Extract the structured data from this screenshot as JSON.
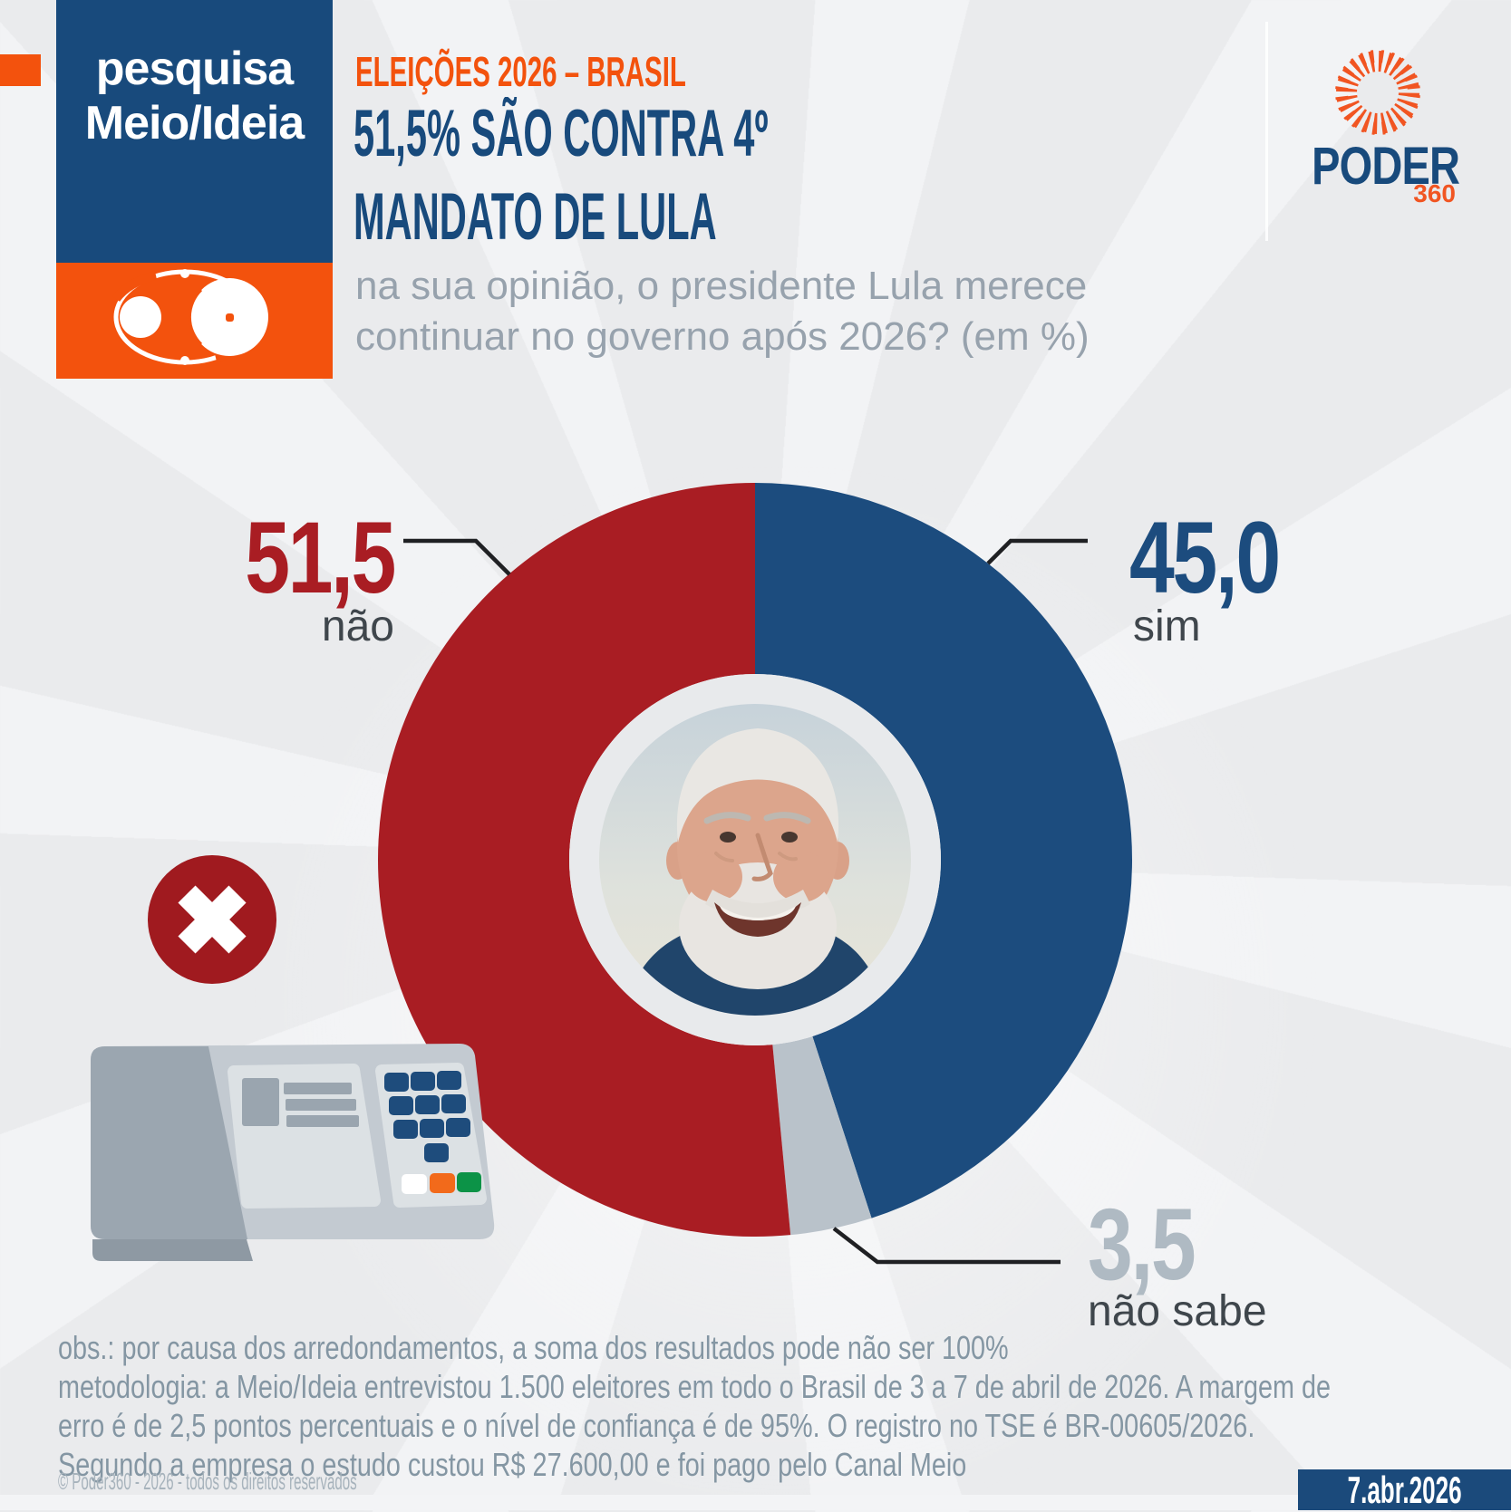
{
  "colors": {
    "orange": "#F3520D",
    "dark_blue": "#184A7C",
    "red": "#A91D23",
    "blue": "#1C4C7E",
    "gray_slice": "#B9C2CA",
    "label_dark": "#3F464C",
    "muted_text": "#8496A3",
    "background": "#EAEBED"
  },
  "brand_box": {
    "line1": "pesquisa",
    "line2": "Meio/Ideia"
  },
  "poder_logo": {
    "name": "PODER",
    "suffix": "360"
  },
  "header": {
    "kicker": "ELEIÇÕES 2026 – BRASIL",
    "title_line1": "51,5% SÃO CONTRA 4º",
    "title_line2": "MANDATO DE LULA",
    "subtitle_line1": "na sua opinião, o presidente Lula merece",
    "subtitle_line2": "continuar no governo após 2026? (em %)"
  },
  "chart_data": {
    "type": "pie",
    "title": "na sua opinião, o presidente Lula merece continuar no governo após 2026? (em %)",
    "unit": "%",
    "start_angle_deg": 0,
    "direction": "clockwise",
    "donut": true,
    "slices": [
      {
        "label": "sim",
        "value": 45.0,
        "value_label": "45,0",
        "color": "#1C4C7E"
      },
      {
        "label": "não sabe",
        "value": 3.5,
        "value_label": "3,5",
        "color": "#B9C2CA"
      },
      {
        "label": "não",
        "value": 51.5,
        "value_label": "51,5",
        "color": "#A91D23"
      }
    ]
  },
  "footnotes": [
    "obs.: por causa dos arredondamentos, a soma dos resultados pode não ser 100%",
    "metodologia: a Meio/Ideia entrevistou 1.500 eleitores em todo o Brasil de 3 a 7 de abril de 2026. A margem de",
    "erro é de 2,5 pontos percentuais e o nível de confiança é de 95%. O registro no TSE é BR-00605/2026.",
    "Segundo a empresa o estudo custou R$ 27.600,00 e foi pago pelo Canal Meio"
  ],
  "copyright": "© Poder360 - 2026 - todos os direitos reservados",
  "date_badge": "7.abr.2026"
}
